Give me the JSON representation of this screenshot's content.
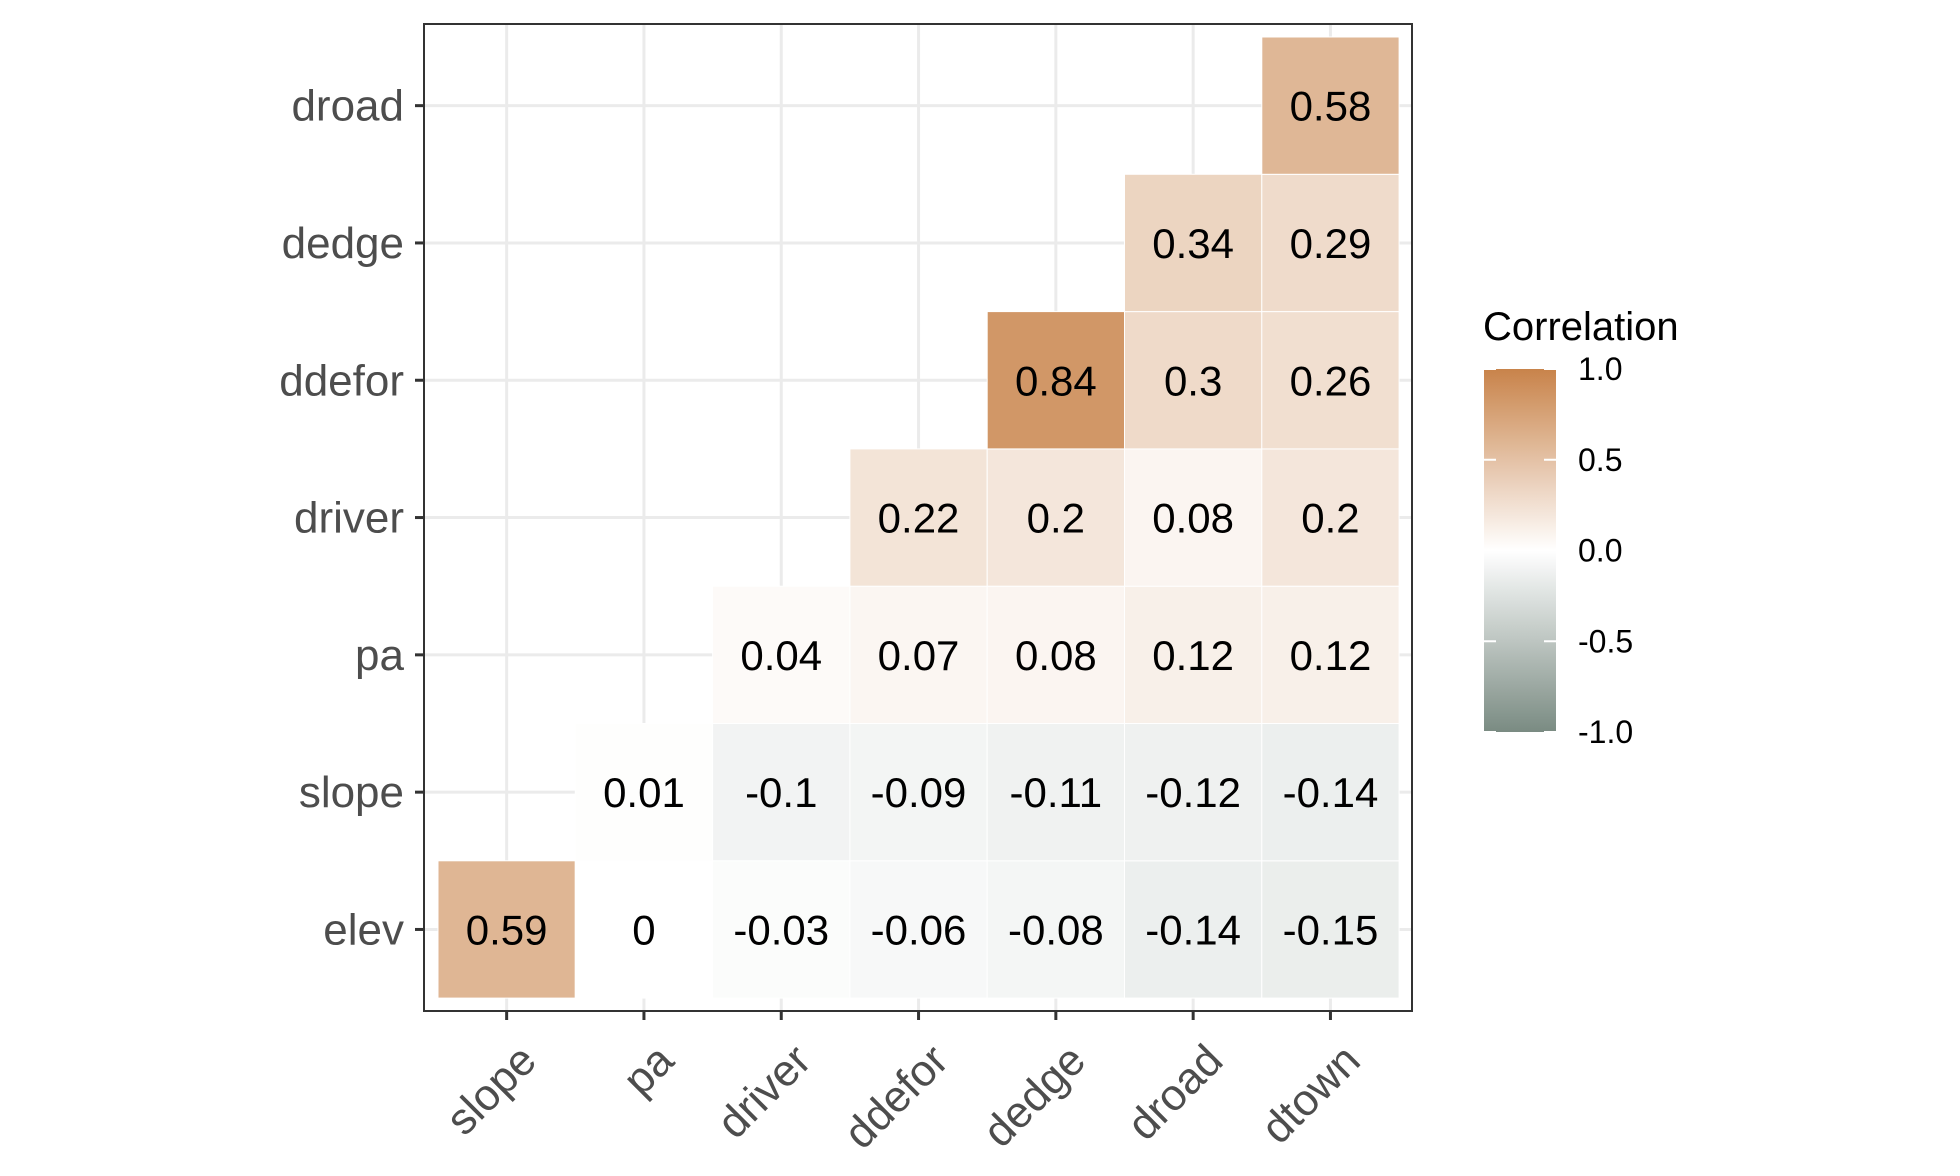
{
  "chart_data": {
    "type": "heatmap",
    "title": "",
    "xlabel": "",
    "ylabel": "",
    "x_categories": [
      "slope",
      "pa",
      "driver",
      "ddefor",
      "dedge",
      "droad",
      "dtown"
    ],
    "y_categories": [
      "elev",
      "slope",
      "pa",
      "driver",
      "ddefor",
      "dedge",
      "droad"
    ],
    "cells": [
      {
        "x": "slope",
        "y": "elev",
        "value": 0.59,
        "label": "0.59"
      },
      {
        "x": "pa",
        "y": "elev",
        "value": 0,
        "label": "0"
      },
      {
        "x": "driver",
        "y": "elev",
        "value": -0.03,
        "label": "-0.03"
      },
      {
        "x": "ddefor",
        "y": "elev",
        "value": -0.06,
        "label": "-0.06"
      },
      {
        "x": "dedge",
        "y": "elev",
        "value": -0.08,
        "label": "-0.08"
      },
      {
        "x": "droad",
        "y": "elev",
        "value": -0.14,
        "label": "-0.14"
      },
      {
        "x": "dtown",
        "y": "elev",
        "value": -0.15,
        "label": "-0.15"
      },
      {
        "x": "pa",
        "y": "slope",
        "value": 0.01,
        "label": "0.01"
      },
      {
        "x": "driver",
        "y": "slope",
        "value": -0.1,
        "label": "-0.1"
      },
      {
        "x": "ddefor",
        "y": "slope",
        "value": -0.09,
        "label": "-0.09"
      },
      {
        "x": "dedge",
        "y": "slope",
        "value": -0.11,
        "label": "-0.11"
      },
      {
        "x": "droad",
        "y": "slope",
        "value": -0.12,
        "label": "-0.12"
      },
      {
        "x": "dtown",
        "y": "slope",
        "value": -0.14,
        "label": "-0.14"
      },
      {
        "x": "driver",
        "y": "pa",
        "value": 0.04,
        "label": "0.04"
      },
      {
        "x": "ddefor",
        "y": "pa",
        "value": 0.07,
        "label": "0.07"
      },
      {
        "x": "dedge",
        "y": "pa",
        "value": 0.08,
        "label": "0.08"
      },
      {
        "x": "droad",
        "y": "pa",
        "value": 0.12,
        "label": "0.12"
      },
      {
        "x": "dtown",
        "y": "pa",
        "value": 0.12,
        "label": "0.12"
      },
      {
        "x": "ddefor",
        "y": "driver",
        "value": 0.22,
        "label": "0.22"
      },
      {
        "x": "dedge",
        "y": "driver",
        "value": 0.2,
        "label": "0.2"
      },
      {
        "x": "droad",
        "y": "driver",
        "value": 0.08,
        "label": "0.08"
      },
      {
        "x": "dtown",
        "y": "driver",
        "value": 0.2,
        "label": "0.2"
      },
      {
        "x": "dedge",
        "y": "ddefor",
        "value": 0.84,
        "label": "0.84"
      },
      {
        "x": "droad",
        "y": "ddefor",
        "value": 0.3,
        "label": "0.3"
      },
      {
        "x": "dtown",
        "y": "ddefor",
        "value": 0.26,
        "label": "0.26"
      },
      {
        "x": "droad",
        "y": "dedge",
        "value": 0.34,
        "label": "0.34"
      },
      {
        "x": "dtown",
        "y": "dedge",
        "value": 0.29,
        "label": "0.29"
      },
      {
        "x": "dtown",
        "y": "droad",
        "value": 0.58,
        "label": "0.58"
      }
    ],
    "color_scale": {
      "low": "#7a8b82",
      "mid": "#ffffff",
      "high": "#c8834a",
      "limits": [
        -1.0,
        1.0
      ]
    },
    "legend": {
      "title": "Correlation",
      "position": "right",
      "ticks": [
        "1.0",
        "0.5",
        "0.0",
        "-0.5",
        "-1.0"
      ]
    },
    "grid": true
  }
}
